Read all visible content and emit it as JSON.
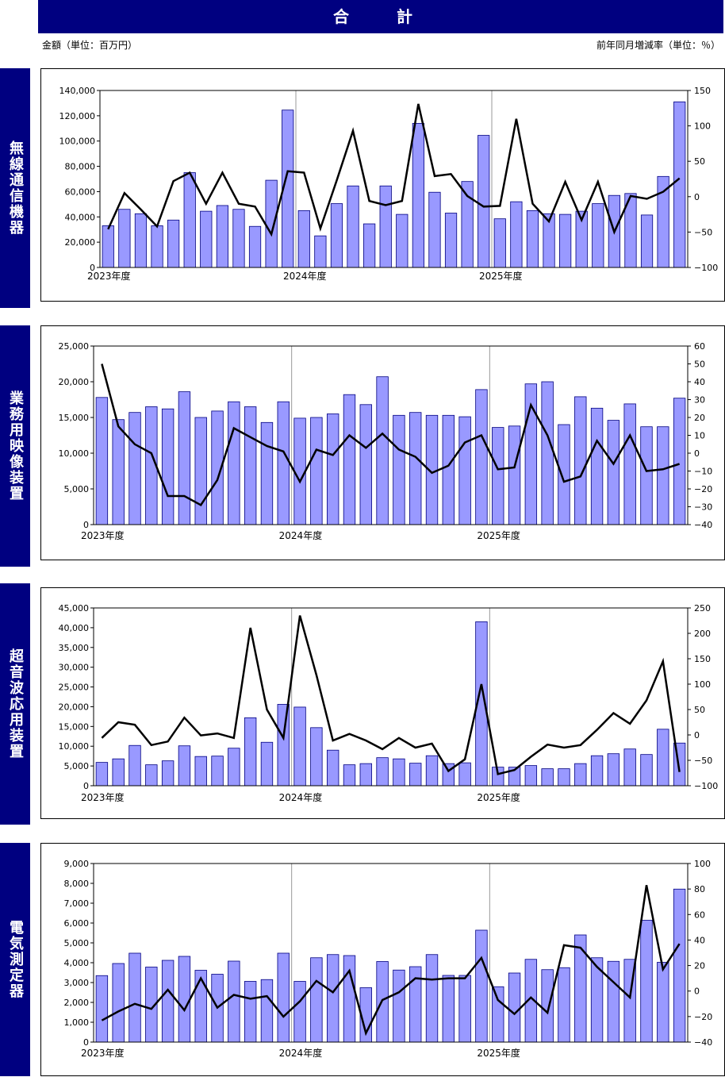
{
  "header": {
    "title": "合　計"
  },
  "units": {
    "left": "金額（単位：百万円）",
    "right": "前年同月増減率（単位：％）"
  },
  "colors": {
    "header_bg": "#000080",
    "bar_fill": "#9999FF",
    "bar_stroke": "#000080",
    "line": "#000000"
  },
  "chart_data": [
    {
      "type": "bar",
      "title": "無線通信機器",
      "x_labels": [
        "2023年度",
        "2024年度",
        "2025年度"
      ],
      "y_ticks": [
        "0",
        "20,000",
        "40,000",
        "60,000",
        "80,000",
        "100,000",
        "120,000",
        "140,000"
      ],
      "y2_ticks": [
        "−100",
        "−50",
        "0",
        "50",
        "100",
        "150"
      ],
      "ylim": [
        0,
        140000
      ],
      "y2lim": [
        -100,
        150
      ],
      "series": [
        {
          "type": "bar",
          "values": [
            33000,
            46000,
            42500,
            33000,
            37500,
            75000,
            44500,
            49000,
            46000,
            32500,
            69000,
            124500,
            45000,
            25000,
            50500,
            64500,
            34500,
            64500,
            42000,
            114000,
            59500,
            43000,
            68000,
            104500,
            38500,
            52000,
            45000,
            42500,
            42000,
            44500,
            50500,
            57000,
            58500,
            41500,
            72000,
            131000
          ]
        },
        {
          "type": "line",
          "values": [
            -46,
            5,
            -18,
            -42,
            22,
            34,
            -10,
            34,
            -10,
            -14,
            -53,
            36,
            34,
            -45,
            23,
            93,
            -6,
            -12,
            -6,
            131,
            29,
            32,
            1,
            -14,
            -13,
            110,
            -10,
            -35,
            21,
            -33,
            21,
            -50,
            1,
            -3,
            7,
            26
          ]
        }
      ]
    },
    {
      "type": "bar",
      "title": "業務用映像装置",
      "x_labels": [
        "2023年度",
        "2024年度",
        "2025年度"
      ],
      "y_ticks": [
        "0",
        "5,000",
        "10,000",
        "15,000",
        "20,000",
        "25,000"
      ],
      "y2_ticks": [
        "−40",
        "−30",
        "−20",
        "−10",
        "0",
        "10",
        "20",
        "30",
        "40",
        "50",
        "60"
      ],
      "ylim": [
        0,
        25000
      ],
      "y2lim": [
        -40,
        60
      ],
      "series": [
        {
          "type": "bar",
          "values": [
            17800,
            14700,
            15700,
            16500,
            16200,
            18600,
            15000,
            15900,
            17200,
            16500,
            14300,
            17200,
            14900,
            15000,
            15500,
            18200,
            16800,
            20700,
            15300,
            15700,
            15300,
            15300,
            15100,
            18900,
            13600,
            13800,
            19700,
            20000,
            14000,
            17900,
            16300,
            14600,
            16900,
            13700,
            13700,
            17700
          ]
        },
        {
          "type": "line",
          "values": [
            50,
            15,
            5,
            0,
            -24,
            -24,
            -29,
            -15,
            14,
            9,
            4,
            1,
            -16,
            2,
            -1,
            10,
            3,
            11,
            2,
            -2,
            -11,
            -7,
            6,
            10,
            -9,
            -8,
            27,
            10,
            -16,
            -13,
            7,
            -6,
            10,
            -10,
            -9,
            -6
          ]
        }
      ]
    },
    {
      "type": "bar",
      "title": "超音波応用装置",
      "x_labels": [
        "2023年度",
        "2024年度",
        "2025年度"
      ],
      "y_ticks": [
        "0",
        "5,000",
        "10,000",
        "15,000",
        "20,000",
        "25,000",
        "30,000",
        "35,000",
        "40,000",
        "45,000"
      ],
      "y2_ticks": [
        "−100",
        "−50",
        "0",
        "50",
        "100",
        "150",
        "200",
        "250"
      ],
      "ylim": [
        0,
        45000
      ],
      "y2lim": [
        -100,
        250
      ],
      "series": [
        {
          "type": "bar",
          "values": [
            5900,
            6800,
            10200,
            5300,
            6300,
            10100,
            7400,
            7500,
            9500,
            17200,
            11000,
            20600,
            19900,
            14700,
            9000,
            5300,
            5600,
            7100,
            6800,
            5700,
            7600,
            5600,
            5800,
            41500,
            4700,
            4700,
            5100,
            4300,
            4300,
            5600,
            7600,
            8100,
            9300,
            7900,
            14300,
            10800
          ]
        },
        {
          "type": "line",
          "values": [
            -6,
            25,
            20,
            -20,
            -13,
            34,
            -1,
            3,
            -6,
            211,
            50,
            -6,
            235,
            118,
            -11,
            2,
            -11,
            -28,
            -6,
            -25,
            -17,
            -71,
            -48,
            100,
            -77,
            -69,
            -43,
            -19,
            -25,
            -20,
            10,
            43,
            22,
            68,
            145,
            -73
          ]
        }
      ]
    },
    {
      "type": "bar",
      "title": "電気測定器",
      "x_labels": [
        "2023年度",
        "2024年度",
        "2025年度"
      ],
      "y_ticks": [
        "0",
        "1,000",
        "2,000",
        "3,000",
        "4,000",
        "5,000",
        "6,000",
        "7,000",
        "8,000",
        "9,000"
      ],
      "y2_ticks": [
        "−40",
        "−20",
        "0",
        "20",
        "40",
        "60",
        "80",
        "100"
      ],
      "ylim": [
        0,
        9000
      ],
      "y2lim": [
        -40,
        100
      ],
      "series": [
        {
          "type": "bar",
          "values": [
            3350,
            3960,
            4480,
            3780,
            4120,
            4320,
            3620,
            3420,
            4080,
            3060,
            3150,
            4480,
            3060,
            4250,
            4410,
            4360,
            2740,
            4060,
            3630,
            3800,
            4410,
            3360,
            3360,
            5640,
            2790,
            3480,
            4170,
            3650,
            3750,
            5400,
            4250,
            4070,
            4170,
            6140,
            4020,
            7710
          ]
        },
        {
          "type": "line",
          "values": [
            -23,
            -16,
            -10,
            -14,
            1,
            -15,
            10,
            -13,
            -3,
            -6,
            -4,
            -20,
            -8,
            8,
            -1,
            16,
            -33,
            -7,
            -1,
            10,
            9,
            10,
            10,
            26,
            -7,
            -18,
            -5,
            -17,
            36,
            34,
            19,
            7,
            -5,
            83,
            17,
            37
          ]
        }
      ]
    }
  ]
}
